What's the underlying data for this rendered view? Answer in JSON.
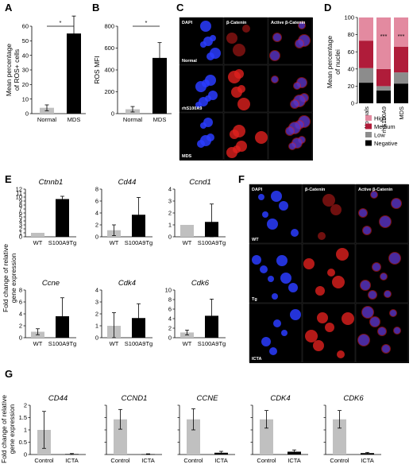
{
  "panels": {
    "A": "A",
    "B": "B",
    "C": "C",
    "D": "D",
    "E": "E",
    "F": "F",
    "G": "G"
  },
  "colors": {
    "normal_bar": "#c0c0c0",
    "mds_bar": "#000000",
    "high": "#e38aa0",
    "medium": "#b01c3a",
    "low": "#8c8c8c",
    "negative": "#000000",
    "dapi": "#2a3cff",
    "catenin": "#e0201e"
  },
  "micro_C": {
    "columns": [
      "DAPI",
      "β-Catenin",
      "Active β-Catenin"
    ],
    "rows": [
      "Normal",
      "rhS100A9",
      "MDS"
    ]
  },
  "micro_F": {
    "columns": [
      "DAPI",
      "β-Catenin",
      "Active β-Catenin"
    ],
    "rows": [
      "WT",
      "Tg",
      "ICTA"
    ]
  },
  "chart_data": [
    {
      "panel": "A",
      "type": "bar",
      "categories": [
        "Normal",
        "MDS"
      ],
      "values": [
        4,
        55
      ],
      "errors": [
        2,
        12
      ],
      "ylabel": "Mean percentage of ROS+ cells",
      "ylim": [
        0,
        60
      ],
      "yticks": [
        0,
        10,
        20,
        30,
        40,
        50,
        60
      ],
      "significance": "*"
    },
    {
      "panel": "B",
      "type": "bar",
      "categories": [
        "Normal",
        "MDS"
      ],
      "values": [
        40,
        510
      ],
      "errors": [
        25,
        140
      ],
      "ylabel": "ROS MFI",
      "ylim": [
        0,
        800
      ],
      "yticks": [
        0,
        200,
        400,
        600,
        800
      ],
      "significance": "*"
    },
    {
      "panel": "D",
      "type": "bar",
      "stacked": true,
      "categories": [
        "Normals",
        "rhS100A9",
        "MDS"
      ],
      "series": [
        {
          "name": "Negative",
          "values": [
            24,
            15,
            23
          ]
        },
        {
          "name": "Low",
          "values": [
            17,
            5,
            13
          ]
        },
        {
          "name": "Medium",
          "values": [
            32,
            20,
            30
          ]
        },
        {
          "name": "High",
          "values": [
            27,
            60,
            34
          ]
        }
      ],
      "ylabel": "Mean percentage of nuclei",
      "ylim": [
        0,
        100
      ],
      "yticks": [
        0,
        20,
        40,
        60,
        80,
        100
      ],
      "annotations": [
        {
          "category": "rhS100A9",
          "text": "***"
        },
        {
          "category": "MDS",
          "text": "***"
        }
      ],
      "legend": [
        "High",
        "Medium",
        "Low",
        "Negative"
      ]
    },
    {
      "panel": "E",
      "type": "bar",
      "title": "Ctnnb1",
      "categories": [
        "WT",
        "S100A9Tg"
      ],
      "values": [
        1,
        9.5
      ],
      "errors": [
        0,
        0.7
      ],
      "ylim": [
        0,
        12
      ],
      "yticks": [
        0,
        1,
        2,
        3,
        4,
        5,
        6,
        7,
        8,
        9,
        10,
        11,
        12
      ]
    },
    {
      "panel": "E",
      "type": "bar",
      "title": "Cd44",
      "categories": [
        "WT",
        "S100A9Tg"
      ],
      "values": [
        1.1,
        3.7
      ],
      "errors": [
        0.9,
        2.9
      ],
      "ylim": [
        0,
        8
      ],
      "yticks": [
        0,
        2,
        4,
        6,
        8
      ]
    },
    {
      "panel": "E",
      "type": "bar",
      "title": "Ccnd1",
      "categories": [
        "WT",
        "S100A9Tg"
      ],
      "values": [
        1.0,
        1.25
      ],
      "errors": [
        0,
        1.5
      ],
      "ylim": [
        0,
        4
      ],
      "yticks": [
        0,
        1,
        2,
        3,
        4
      ]
    },
    {
      "panel": "E",
      "type": "bar",
      "title": "Ccne",
      "categories": [
        "WT",
        "S100A9Tg"
      ],
      "values": [
        1.0,
        3.6
      ],
      "errors": [
        0.5,
        3.1
      ],
      "ylim": [
        0,
        8
      ],
      "yticks": [
        0,
        2,
        4,
        6,
        8
      ]
    },
    {
      "panel": "E",
      "type": "bar",
      "title": "Cdk4",
      "categories": [
        "WT",
        "S100A9Tg"
      ],
      "values": [
        1.0,
        1.65
      ],
      "errors": [
        1.1,
        1.2
      ],
      "ylim": [
        0,
        4
      ],
      "yticks": [
        0,
        1,
        2,
        3,
        4
      ]
    },
    {
      "panel": "E",
      "type": "bar",
      "title": "Cdk6",
      "categories": [
        "WT",
        "S100A9Tg"
      ],
      "values": [
        1.1,
        4.6
      ],
      "errors": [
        0.5,
        3.5
      ],
      "ylim": [
        0,
        10
      ],
      "yticks": [
        0,
        2,
        4,
        6,
        8,
        10
      ]
    },
    {
      "panel": "G",
      "type": "bar",
      "title": "CD44",
      "categories": [
        "Control",
        "ICTA"
      ],
      "values": [
        1.0,
        0.02
      ],
      "errors": [
        0.75,
        0.02
      ],
      "ylim": [
        0,
        2
      ],
      "yticks": [
        0,
        0.5,
        1,
        1.5,
        2
      ]
    },
    {
      "panel": "G",
      "type": "bar",
      "title": "CCND1",
      "categories": [
        "Control",
        "ICTA"
      ],
      "values": [
        1.0,
        0.01
      ],
      "errors": [
        0.28,
        0.01
      ],
      "ylim": [
        0,
        1.4
      ]
    },
    {
      "panel": "G",
      "type": "bar",
      "title": "CCNE",
      "categories": [
        "Control",
        "ICTA"
      ],
      "values": [
        1.0,
        0.05
      ],
      "errors": [
        0.3,
        0.04
      ],
      "ylim": [
        0,
        1.4
      ]
    },
    {
      "panel": "G",
      "type": "bar",
      "title": "CDK4",
      "categories": [
        "Control",
        "ICTA"
      ],
      "values": [
        1.0,
        0.08
      ],
      "errors": [
        0.25,
        0.05
      ],
      "ylim": [
        0,
        1.4
      ]
    },
    {
      "panel": "G",
      "type": "bar",
      "title": "CDK6",
      "categories": [
        "Control",
        "ICTA"
      ],
      "values": [
        1.0,
        0.04
      ],
      "errors": [
        0.25,
        0.02
      ],
      "ylim": [
        0,
        1.4
      ]
    }
  ],
  "ylabel_E": "Fold change of relative gene expression",
  "ylabel_G": "Fold change of relative gene expression"
}
